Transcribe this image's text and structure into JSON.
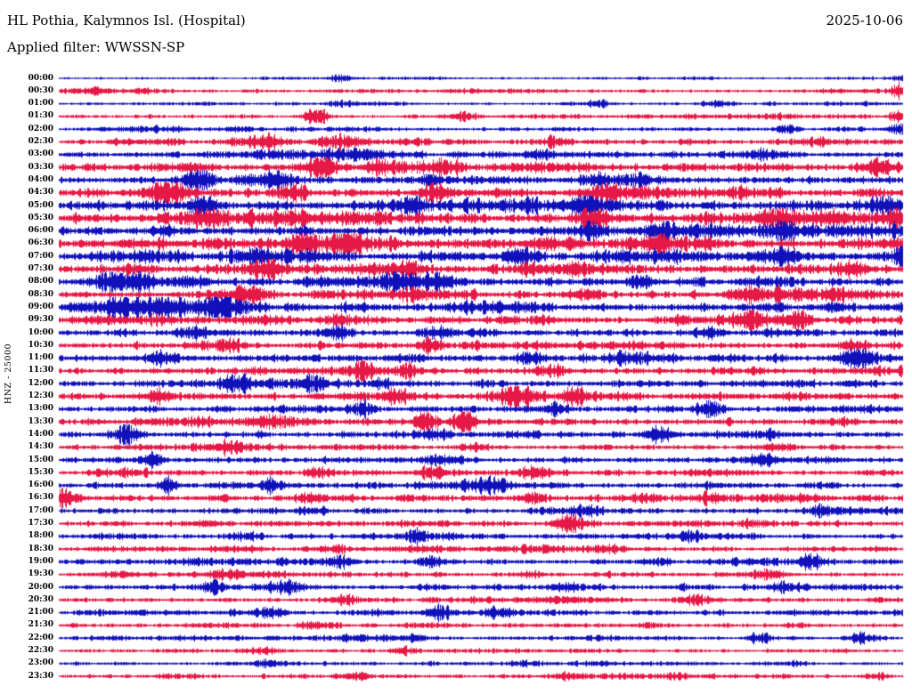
{
  "header": {
    "station_title": "HL Pothia, Kalymnos Isl. (Hospital)",
    "date": "2025-10-06",
    "filter_label": "Applied filter: WWSSN-SP"
  },
  "axis": {
    "channel_label": "HNZ - 25000"
  },
  "chart_data": {
    "type": "line",
    "subtype": "helicorder-seismogram",
    "title": "HL Pothia, Kalymnos Isl. (Hospital)",
    "date": "2025-10-06",
    "filter": "WWSSN-SP",
    "channel_label": "HNZ - 25000",
    "minutes_per_row": 30,
    "legend": "none",
    "grid": false,
    "colors": {
      "blue": "#1111bb",
      "red": "#e61845"
    },
    "rows": [
      {
        "time": "00:00",
        "color": "blue",
        "amp": 1.4,
        "bursts": [
          [
            0.335,
            8,
            3
          ],
          [
            0.995,
            6,
            2
          ]
        ]
      },
      {
        "time": "00:30",
        "color": "red",
        "amp": 2.2,
        "bursts": [
          [
            0.03,
            25,
            2
          ],
          [
            0.1,
            15,
            2
          ],
          [
            0.995,
            6,
            7
          ]
        ]
      },
      {
        "time": "01:00",
        "color": "blue",
        "amp": 1.8,
        "bursts": [
          [
            0.33,
            10,
            2
          ],
          [
            0.64,
            10,
            2
          ],
          [
            0.78,
            12,
            2.5
          ]
        ]
      },
      {
        "time": "01:30",
        "color": "red",
        "amp": 2.2,
        "bursts": [
          [
            0.305,
            9,
            9
          ],
          [
            0.48,
            12,
            3
          ],
          [
            0.995,
            7,
            7
          ]
        ]
      },
      {
        "time": "02:00",
        "color": "blue",
        "amp": 2.2,
        "bursts": [
          [
            0.21,
            12,
            2
          ],
          [
            0.86,
            10,
            3
          ],
          [
            0.995,
            8,
            4
          ]
        ]
      },
      {
        "time": "02:30",
        "color": "red",
        "amp": 3.0,
        "bursts": [
          [
            0.245,
            18,
            6
          ],
          [
            0.335,
            16,
            6
          ],
          [
            0.59,
            12,
            3
          ],
          [
            0.9,
            10,
            2
          ]
        ]
      },
      {
        "time": "03:00",
        "color": "blue",
        "amp": 3.6,
        "bursts": [
          [
            0.36,
            12,
            3
          ],
          [
            0.57,
            10,
            2
          ],
          [
            0.83,
            12,
            3
          ]
        ]
      },
      {
        "time": "03:30",
        "color": "red",
        "amp": 4.5,
        "bursts": [
          [
            0.31,
            9,
            11
          ],
          [
            0.155,
            12,
            4
          ],
          [
            0.38,
            12,
            5
          ],
          [
            0.455,
            10,
            4
          ],
          [
            0.97,
            10,
            5
          ]
        ]
      },
      {
        "time": "04:00",
        "color": "blue",
        "amp": 4.5,
        "bursts": [
          [
            0.165,
            12,
            10
          ],
          [
            0.255,
            12,
            5
          ],
          [
            0.44,
            12,
            5
          ],
          [
            0.64,
            10,
            4
          ]
        ]
      },
      {
        "time": "04:30",
        "color": "red",
        "amp": 4.5,
        "bursts": [
          [
            0.13,
            12,
            8
          ],
          [
            0.275,
            12,
            7
          ],
          [
            0.445,
            12,
            6
          ],
          [
            0.65,
            9,
            8
          ]
        ]
      },
      {
        "time": "05:00",
        "color": "blue",
        "amp": 5.2,
        "bursts": [
          [
            0.17,
            12,
            6
          ],
          [
            0.42,
            12,
            5
          ],
          [
            0.62,
            10,
            8
          ],
          [
            0.98,
            10,
            5
          ]
        ]
      },
      {
        "time": "05:30",
        "color": "red",
        "amp": 5.2,
        "bursts": [
          [
            0.17,
            16,
            8
          ],
          [
            0.63,
            12,
            6
          ],
          [
            0.85,
            10,
            5
          ],
          [
            0.995,
            8,
            6
          ]
        ]
      },
      {
        "time": "06:00",
        "color": "blue",
        "amp": 5.2,
        "bursts": [
          [
            0.63,
            10,
            8
          ],
          [
            0.715,
            10,
            6
          ],
          [
            0.86,
            10,
            6
          ]
        ]
      },
      {
        "time": "06:30",
        "color": "red",
        "amp": 5.5,
        "bursts": [
          [
            0.29,
            10,
            11
          ],
          [
            0.34,
            10,
            11
          ],
          [
            0.58,
            12,
            5
          ],
          [
            0.71,
            9,
            8
          ]
        ]
      },
      {
        "time": "07:00",
        "color": "blue",
        "amp": 5.5,
        "bursts": [
          [
            0.23,
            12,
            5
          ],
          [
            0.55,
            12,
            5
          ],
          [
            0.86,
            10,
            7
          ],
          [
            1.0,
            7,
            11
          ]
        ]
      },
      {
        "time": "07:30",
        "color": "red",
        "amp": 5.5,
        "bursts": [
          [
            0.25,
            12,
            9
          ],
          [
            0.41,
            10,
            7
          ],
          [
            0.61,
            12,
            5
          ],
          [
            0.94,
            10,
            5
          ]
        ]
      },
      {
        "time": "08:00",
        "color": "blue",
        "amp": 4.8,
        "bursts": [
          [
            0.065,
            9,
            8
          ],
          [
            0.095,
            9,
            8
          ],
          [
            0.405,
            14,
            8
          ],
          [
            0.45,
            12,
            8
          ],
          [
            0.69,
            10,
            6
          ]
        ]
      },
      {
        "time": "08:30",
        "color": "red",
        "amp": 4.0,
        "bursts": [
          [
            0.23,
            14,
            4
          ],
          [
            0.42,
            12,
            4
          ],
          [
            0.62,
            12,
            4
          ],
          [
            0.81,
            12,
            4
          ]
        ]
      },
      {
        "time": "09:00",
        "color": "blue",
        "amp": 4.8,
        "bursts": [
          [
            0.08,
            16,
            8
          ],
          [
            0.13,
            20,
            9
          ],
          [
            0.19,
            16,
            8
          ],
          [
            0.92,
            10,
            4
          ]
        ]
      },
      {
        "time": "09:30",
        "color": "red",
        "amp": 4.5,
        "bursts": [
          [
            0.33,
            12,
            4
          ],
          [
            0.82,
            15,
            8
          ],
          [
            0.875,
            12,
            7
          ]
        ]
      },
      {
        "time": "10:00",
        "color": "blue",
        "amp": 4.0,
        "bursts": [
          [
            0.16,
            12,
            5
          ],
          [
            0.33,
            10,
            6
          ],
          [
            0.45,
            12,
            5
          ],
          [
            0.77,
            12,
            4
          ]
        ]
      },
      {
        "time": "10:30",
        "color": "red",
        "amp": 3.8,
        "bursts": [
          [
            0.2,
            12,
            4
          ],
          [
            0.44,
            9,
            7
          ],
          [
            0.94,
            10,
            4
          ]
        ]
      },
      {
        "time": "11:00",
        "color": "blue",
        "amp": 4.5,
        "bursts": [
          [
            0.12,
            12,
            5
          ],
          [
            0.56,
            12,
            4
          ],
          [
            0.945,
            11,
            8
          ]
        ]
      },
      {
        "time": "11:30",
        "color": "red",
        "amp": 3.8,
        "bursts": [
          [
            0.36,
            10,
            9
          ],
          [
            0.41,
            10,
            6
          ],
          [
            0.58,
            12,
            4
          ]
        ]
      },
      {
        "time": "12:00",
        "color": "blue",
        "amp": 3.8,
        "bursts": [
          [
            0.21,
            12,
            4
          ],
          [
            0.3,
            10,
            5
          ],
          [
            0.38,
            10,
            4
          ]
        ]
      },
      {
        "time": "12:30",
        "color": "red",
        "amp": 4.0,
        "bursts": [
          [
            0.12,
            10,
            6
          ],
          [
            0.4,
            10,
            6
          ],
          [
            0.545,
            16,
            6
          ],
          [
            0.61,
            10,
            7
          ]
        ]
      },
      {
        "time": "13:00",
        "color": "blue",
        "amp": 3.2,
        "bursts": [
          [
            0.36,
            10,
            5
          ],
          [
            0.59,
            12,
            3
          ],
          [
            0.77,
            9,
            7
          ]
        ]
      },
      {
        "time": "13:30",
        "color": "red",
        "amp": 3.8,
        "bursts": [
          [
            0.435,
            9,
            9
          ],
          [
            0.48,
            9,
            11
          ],
          [
            0.25,
            12,
            4
          ]
        ]
      },
      {
        "time": "14:00",
        "color": "blue",
        "amp": 3.8,
        "bursts": [
          [
            0.08,
            10,
            8
          ],
          [
            0.44,
            12,
            4
          ],
          [
            0.71,
            9,
            8
          ]
        ]
      },
      {
        "time": "14:30",
        "color": "red",
        "amp": 3.2,
        "bursts": [
          [
            0.2,
            12,
            3
          ],
          [
            0.49,
            12,
            3
          ],
          [
            0.85,
            12,
            3
          ]
        ]
      },
      {
        "time": "15:00",
        "color": "blue",
        "amp": 3.2,
        "bursts": [
          [
            0.11,
            8,
            10
          ],
          [
            0.45,
            12,
            4
          ],
          [
            0.83,
            12,
            4
          ]
        ]
      },
      {
        "time": "15:30",
        "color": "red",
        "amp": 3.2,
        "bursts": [
          [
            0.31,
            12,
            4
          ],
          [
            0.44,
            10,
            5
          ],
          [
            0.56,
            12,
            4
          ]
        ]
      },
      {
        "time": "16:00",
        "color": "blue",
        "amp": 3.2,
        "bursts": [
          [
            0.13,
            7,
            7
          ],
          [
            0.25,
            7,
            7
          ],
          [
            0.51,
            12,
            4
          ]
        ]
      },
      {
        "time": "16:30",
        "color": "red",
        "amp": 3.8,
        "bursts": [
          [
            0.005,
            9,
            10
          ],
          [
            0.3,
            12,
            4
          ],
          [
            0.56,
            10,
            5
          ],
          [
            0.77,
            12,
            4
          ]
        ]
      },
      {
        "time": "17:00",
        "color": "blue",
        "amp": 3.2,
        "bursts": [
          [
            0.3,
            12,
            3
          ],
          [
            0.63,
            12,
            3
          ],
          [
            0.9,
            12,
            3
          ]
        ]
      },
      {
        "time": "17:30",
        "color": "red",
        "amp": 3.2,
        "bursts": [
          [
            0.17,
            12,
            3
          ],
          [
            0.605,
            12,
            7
          ],
          [
            0.83,
            12,
            3
          ]
        ]
      },
      {
        "time": "18:00",
        "color": "blue",
        "amp": 3.2,
        "bursts": [
          [
            0.22,
            12,
            3
          ],
          [
            0.425,
            8,
            6
          ],
          [
            0.75,
            12,
            3
          ]
        ]
      },
      {
        "time": "18:30",
        "color": "red",
        "amp": 2.8,
        "bursts": [
          [
            0.33,
            12,
            3
          ],
          [
            0.65,
            12,
            3
          ]
        ]
      },
      {
        "time": "19:00",
        "color": "blue",
        "amp": 3.2,
        "bursts": [
          [
            0.33,
            10,
            4
          ],
          [
            0.44,
            10,
            4
          ],
          [
            0.89,
            11,
            6
          ]
        ]
      },
      {
        "time": "19:30",
        "color": "red",
        "amp": 2.8,
        "bursts": [
          [
            0.2,
            12,
            3
          ],
          [
            0.56,
            12,
            3
          ],
          [
            0.84,
            12,
            3
          ]
        ]
      },
      {
        "time": "20:00",
        "color": "blue",
        "amp": 3.2,
        "bursts": [
          [
            0.18,
            10,
            5
          ],
          [
            0.27,
            10,
            5
          ],
          [
            0.6,
            12,
            4
          ],
          [
            0.86,
            12,
            4
          ]
        ]
      },
      {
        "time": "20:30",
        "color": "red",
        "amp": 2.8,
        "bursts": [
          [
            0.34,
            12,
            3
          ],
          [
            0.75,
            12,
            3
          ]
        ]
      },
      {
        "time": "21:00",
        "color": "blue",
        "amp": 2.8,
        "bursts": [
          [
            0.25,
            12,
            3
          ],
          [
            0.45,
            9,
            6
          ],
          [
            0.52,
            10,
            4
          ]
        ]
      },
      {
        "time": "21:30",
        "color": "red",
        "amp": 2.4,
        "bursts": [
          [
            0.3,
            12,
            2
          ],
          [
            0.7,
            12,
            2
          ]
        ]
      },
      {
        "time": "22:00",
        "color": "blue",
        "amp": 2.4,
        "bursts": [
          [
            0.42,
            12,
            3
          ],
          [
            0.83,
            10,
            4
          ],
          [
            0.95,
            10,
            3
          ]
        ]
      },
      {
        "time": "22:30",
        "color": "red",
        "amp": 2.0,
        "bursts": [
          [
            0.24,
            12,
            2
          ],
          [
            0.41,
            10,
            3
          ]
        ]
      },
      {
        "time": "23:00",
        "color": "blue",
        "amp": 2.0,
        "bursts": [
          [
            0.25,
            10,
            3
          ],
          [
            0.55,
            12,
            2
          ],
          [
            0.87,
            12,
            2
          ]
        ]
      },
      {
        "time": "23:30",
        "color": "red",
        "amp": 2.4,
        "bursts": [
          [
            0.35,
            12,
            3
          ],
          [
            0.6,
            12,
            3
          ],
          [
            0.97,
            8,
            3
          ]
        ]
      }
    ]
  }
}
